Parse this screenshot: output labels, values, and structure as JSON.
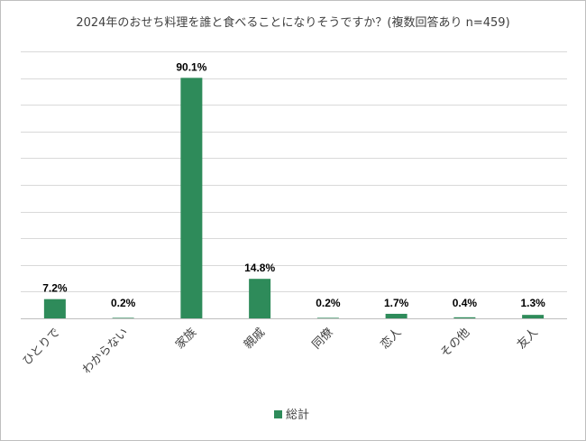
{
  "chart_data": {
    "type": "bar",
    "title": "2024年のおせち料理を誰と食べることになりそうですか？(複数回答あり n=459)",
    "categories": [
      "ひとりで",
      "わからない",
      "家族",
      "親戚",
      "同僚",
      "恋人",
      "その他",
      "友人"
    ],
    "series": [
      {
        "name": "総計",
        "values": [
          7.2,
          0.2,
          90.1,
          14.8,
          0.2,
          1.7,
          0.4,
          1.3
        ],
        "color": "#2e8b5a"
      }
    ],
    "data_labels": [
      "7.2%",
      "0.2%",
      "90.1%",
      "14.8%",
      "0.2%",
      "1.7%",
      "0.4%",
      "1.3%"
    ],
    "ylim": [
      0,
      100
    ],
    "y_ticks_shown": false,
    "grid": true,
    "legend_position": "bottom"
  }
}
